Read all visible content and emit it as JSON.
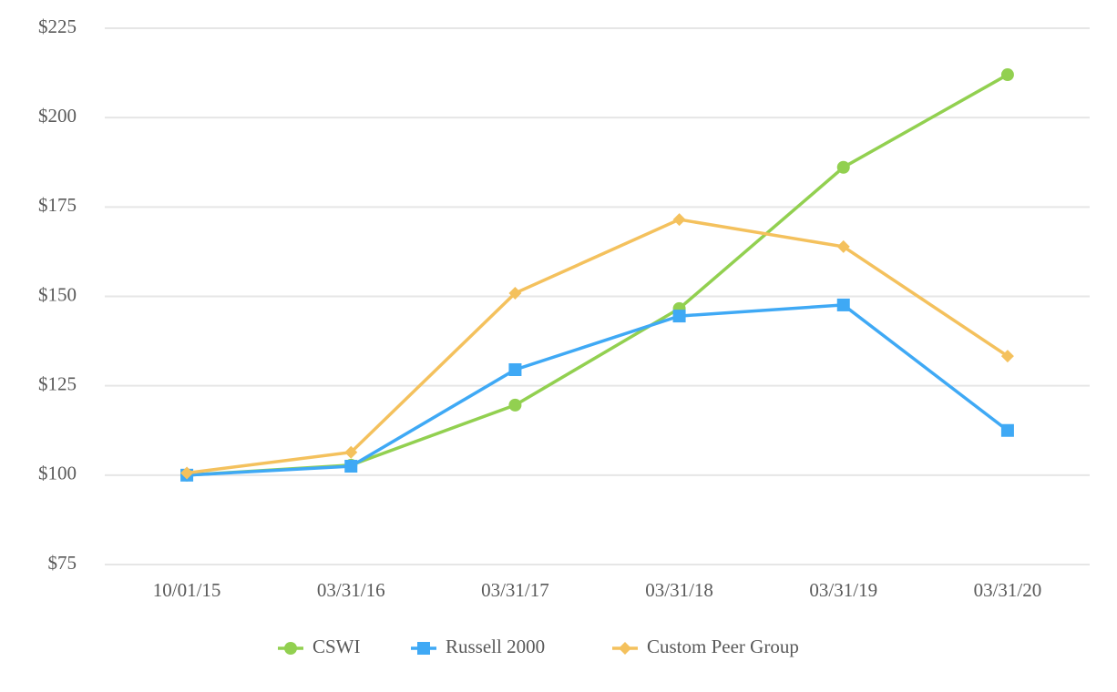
{
  "chart_data": {
    "type": "line",
    "categories": [
      "10/01/15",
      "03/31/16",
      "03/31/17",
      "03/31/18",
      "03/31/19",
      "03/31/20"
    ],
    "series": [
      {
        "name": "CSWI",
        "color": "#92d050",
        "marker": "circle",
        "values": [
          100,
          102.8,
          119.6,
          146.6,
          186.1,
          212.0
        ]
      },
      {
        "name": "Russell 2000",
        "color": "#3fa9f5",
        "marker": "square",
        "values": [
          100,
          102.5,
          129.5,
          144.5,
          147.6,
          112.5
        ]
      },
      {
        "name": "Custom Peer Group",
        "color": "#f4c15d",
        "marker": "diamond",
        "values": [
          100.6,
          106.4,
          150.9,
          171.5,
          163.9,
          133.3
        ]
      }
    ],
    "ylim": [
      75,
      225
    ],
    "yticks": [
      {
        "value": 75,
        "label": "$75"
      },
      {
        "value": 100,
        "label": "$100"
      },
      {
        "value": 125,
        "label": "$125"
      },
      {
        "value": 150,
        "label": "$150"
      },
      {
        "value": 175,
        "label": "$175"
      },
      {
        "value": 200,
        "label": "$200"
      },
      {
        "value": 225,
        "label": "$225"
      }
    ],
    "grid": true,
    "legend": "bottom"
  }
}
